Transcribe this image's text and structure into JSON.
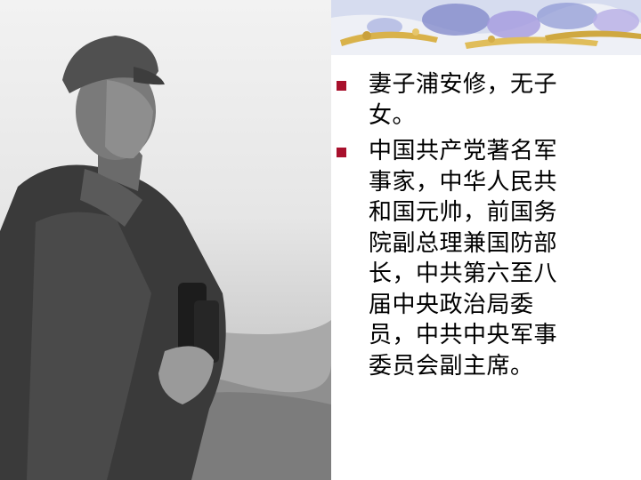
{
  "slide": {
    "photo": {
      "subject": "portrait-photo",
      "accent_colors": {
        "sky": "#eeeeee",
        "ground": "#8a8a8a",
        "figure": "#2e2e2e"
      }
    },
    "banner": {
      "colors": {
        "base": "#eef0f6",
        "flower_blue": "#7d86c8",
        "flower_violet": "#a49adf",
        "wheat": "#d9b24a"
      }
    },
    "bullet_color": "#a8102c",
    "bullets": [
      {
        "text": "妻子浦安修，无子\n女。"
      },
      {
        "text": "中国共产党著名军\n事家，中华人民共\n和国元帅，前国务\n院副总理兼国防部\n长，中共第六至八\n届中央政治局委\n员，中共中央军事\n委员会副主席。"
      }
    ]
  }
}
